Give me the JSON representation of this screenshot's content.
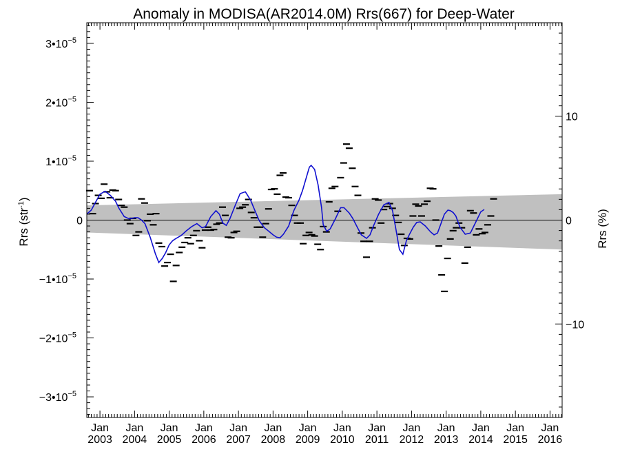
{
  "chart_data": {
    "type": "line",
    "title": "Anomaly in MODISA(AR2014.0M) Rrs(667) for Deep-Water",
    "ylabel": "Rrs (str",
    "ylabel_sup": "-1",
    "ylabel_close": ")",
    "y2label": "Rrs (%)",
    "ylim": [
      -3.35e-05,
      3.35e-05
    ],
    "y2lim": [
      -19.0,
      19.0
    ],
    "xlim": [
      2002.62,
      2016.35
    ],
    "grid": false,
    "legend": "none",
    "x_ticks": [
      {
        "x": 2003.0,
        "month": "Jan",
        "year": "2003"
      },
      {
        "x": 2004.0,
        "month": "Jan",
        "year": "2004"
      },
      {
        "x": 2005.0,
        "month": "Jan",
        "year": "2005"
      },
      {
        "x": 2006.0,
        "month": "Jan",
        "year": "2006"
      },
      {
        "x": 2007.0,
        "month": "Jan",
        "year": "2007"
      },
      {
        "x": 2008.0,
        "month": "Jan",
        "year": "2008"
      },
      {
        "x": 2009.0,
        "month": "Jan",
        "year": "2009"
      },
      {
        "x": 2010.0,
        "month": "Jan",
        "year": "2010"
      },
      {
        "x": 2011.0,
        "month": "Jan",
        "year": "2011"
      },
      {
        "x": 2012.0,
        "month": "Jan",
        "year": "2012"
      },
      {
        "x": 2013.0,
        "month": "Jan",
        "year": "2013"
      },
      {
        "x": 2014.0,
        "month": "Jan",
        "year": "2014"
      },
      {
        "x": 2015.0,
        "month": "Jan",
        "year": "2015"
      },
      {
        "x": 2016.0,
        "month": "Jan",
        "year": "2016"
      }
    ],
    "y_ticks": [
      {
        "value": 3e-05,
        "mantissa": "3",
        "exp": "−5"
      },
      {
        "value": 2e-05,
        "mantissa": "2",
        "exp": "−5"
      },
      {
        "value": 1e-05,
        "mantissa": "1",
        "exp": "−5"
      },
      {
        "value": 0,
        "label": "0"
      },
      {
        "value": -1e-05,
        "mantissa": "−1",
        "exp": "−5"
      },
      {
        "value": -2e-05,
        "mantissa": "−2",
        "exp": "−5"
      },
      {
        "value": -3e-05,
        "mantissa": "−3",
        "exp": "−5"
      }
    ],
    "y2_ticks": [
      {
        "value": 10,
        "label": "10"
      },
      {
        "value": 0,
        "label": "0"
      },
      {
        "value": -10,
        "label": "−10"
      }
    ],
    "band": {
      "color": "#c0c0c0",
      "x": [
        2002.62,
        2016.35
      ],
      "upper": [
        2.5e-06,
        4.4e-06
      ],
      "lower": [
        -2.1e-06,
        -5e-06
      ]
    },
    "series": [
      {
        "kind": "dash",
        "color": "#000000",
        "points": [
          [
            2002.7,
            5e-06
          ],
          [
            2002.79,
            1.1e-06
          ],
          [
            2002.87,
            2.8e-06
          ],
          [
            2002.95,
            4.2e-06
          ],
          [
            2003.04,
            3.7e-06
          ],
          [
            2003.12,
            6.1e-06
          ],
          [
            2003.2,
            4.8e-06
          ],
          [
            2003.29,
            3.8e-06
          ],
          [
            2003.37,
            5.1e-06
          ],
          [
            2003.45,
            5e-06
          ],
          [
            2003.54,
            3.5e-06
          ],
          [
            2003.62,
            2.5e-06
          ],
          [
            2003.7,
            2.2e-06
          ],
          [
            2003.79,
            0.0
          ],
          [
            2003.87,
            -6e-07
          ],
          [
            2003.95,
            3e-07
          ],
          [
            2004.04,
            -2.6e-06
          ],
          [
            2004.12,
            -2e-06
          ],
          [
            2004.2,
            3.6e-06
          ],
          [
            2004.29,
            2.9e-06
          ],
          [
            2004.37,
            -1e-07
          ],
          [
            2004.45,
            1e-06
          ],
          [
            2004.54,
            -8e-07
          ],
          [
            2004.62,
            1.1e-06
          ],
          [
            2004.7,
            -3.9e-06
          ],
          [
            2004.79,
            -4.5e-06
          ],
          [
            2004.87,
            -7.8e-06
          ],
          [
            2004.95,
            -7.2e-06
          ],
          [
            2005.04,
            -5.8e-06
          ],
          [
            2005.12,
            -1.04e-05
          ],
          [
            2005.2,
            -7.7e-06
          ],
          [
            2005.29,
            -5.5e-06
          ],
          [
            2005.37,
            -4.6e-06
          ],
          [
            2005.45,
            -3.8e-06
          ],
          [
            2005.54,
            -3e-06
          ],
          [
            2005.62,
            -4e-06
          ],
          [
            2005.7,
            -2.6e-06
          ],
          [
            2005.79,
            -1.8e-06
          ],
          [
            2005.87,
            -3.5e-06
          ],
          [
            2005.95,
            -4.7e-06
          ],
          [
            2006.04,
            -1.7e-06
          ],
          [
            2006.12,
            -1.2e-06
          ],
          [
            2006.2,
            -1.7e-06
          ],
          [
            2006.29,
            -1.6e-06
          ],
          [
            2006.37,
            -7e-07
          ],
          [
            2006.45,
            -5e-07
          ],
          [
            2006.54,
            2.2e-06
          ],
          [
            2006.62,
            8e-07
          ],
          [
            2006.7,
            -2.9e-06
          ],
          [
            2006.79,
            -3e-06
          ],
          [
            2006.87,
            -2.1e-06
          ],
          [
            2006.95,
            -1.9e-06
          ],
          [
            2007.04,
            2e-06
          ],
          [
            2007.12,
            2.2e-06
          ],
          [
            2007.2,
            2.6e-06
          ],
          [
            2007.29,
            3.5e-06
          ],
          [
            2007.37,
            1.3e-06
          ],
          [
            2007.45,
            4e-07
          ],
          [
            2007.54,
            -1.2e-06
          ],
          [
            2007.62,
            -1.2e-06
          ],
          [
            2007.7,
            -2.9e-06
          ],
          [
            2007.79,
            -6e-07
          ],
          [
            2007.87,
            1.9e-06
          ],
          [
            2007.95,
            5.2e-06
          ],
          [
            2008.04,
            5.3e-06
          ],
          [
            2008.12,
            4.4e-06
          ],
          [
            2008.2,
            7.6e-06
          ],
          [
            2008.29,
            8e-06
          ],
          [
            2008.37,
            3.9e-06
          ],
          [
            2008.45,
            3.8e-06
          ],
          [
            2008.54,
            2.5e-06
          ],
          [
            2008.62,
            8e-07
          ],
          [
            2008.7,
            -5e-07
          ],
          [
            2008.79,
            -5e-07
          ],
          [
            2008.87,
            -4e-06
          ],
          [
            2008.95,
            -2.6e-06
          ],
          [
            2009.04,
            -2.1e-06
          ],
          [
            2009.12,
            -2.5e-06
          ],
          [
            2009.2,
            -2.7e-06
          ],
          [
            2009.29,
            -4.1e-06
          ],
          [
            2009.37,
            -5e-06
          ],
          [
            2009.45,
            -1.1e-06
          ],
          [
            2009.54,
            -2e-06
          ],
          [
            2009.62,
            3.1e-06
          ],
          [
            2009.7,
            5.4e-06
          ],
          [
            2009.79,
            5.7e-06
          ],
          [
            2009.87,
            1.5e-06
          ],
          [
            2009.95,
            7.2e-06
          ],
          [
            2010.04,
            9.7e-06
          ],
          [
            2010.12,
            1.29e-05
          ],
          [
            2010.2,
            1.22e-05
          ],
          [
            2010.29,
            8.8e-06
          ],
          [
            2010.37,
            5.7e-06
          ],
          [
            2010.45,
            4.2e-06
          ],
          [
            2010.54,
            -2.2e-06
          ],
          [
            2010.62,
            -3.6e-06
          ],
          [
            2010.7,
            -6.3e-06
          ],
          [
            2010.79,
            -3.6e-06
          ],
          [
            2010.87,
            -1.3e-06
          ],
          [
            2010.95,
            3.6e-06
          ],
          [
            2011.04,
            3.4e-06
          ],
          [
            2011.12,
            -5e-07
          ],
          [
            2011.2,
            1.8e-06
          ],
          [
            2011.29,
            2.3e-06
          ],
          [
            2011.37,
            2.8e-06
          ],
          [
            2011.45,
            2e-06
          ],
          [
            2011.54,
            8e-07
          ],
          [
            2011.62,
            -4e-07
          ],
          [
            2011.7,
            -2.4e-06
          ],
          [
            2011.79,
            -4.3e-06
          ],
          [
            2011.87,
            -3.1e-06
          ],
          [
            2011.95,
            -3.2e-06
          ],
          [
            2012.04,
            7e-07
          ],
          [
            2012.12,
            2.7e-06
          ],
          [
            2012.2,
            2.4e-06
          ],
          [
            2012.29,
            7e-07
          ],
          [
            2012.37,
            2.7e-06
          ],
          [
            2012.45,
            3.2e-06
          ],
          [
            2012.54,
            5.4e-06
          ],
          [
            2012.62,
            5.3e-06
          ],
          [
            2012.7,
            0.0
          ],
          [
            2012.79,
            -4.4e-06
          ],
          [
            2012.87,
            -9.3e-06
          ],
          [
            2012.95,
            -1.21e-05
          ],
          [
            2013.04,
            -6.5e-06
          ],
          [
            2013.12,
            -3.2e-06
          ],
          [
            2013.2,
            -1.8e-06
          ],
          [
            2013.29,
            -1.3e-06
          ],
          [
            2013.37,
            -5e-07
          ],
          [
            2013.45,
            -1.3e-06
          ],
          [
            2013.54,
            -7.3e-06
          ],
          [
            2013.62,
            -4.6e-06
          ],
          [
            2013.7,
            1.6e-06
          ],
          [
            2013.79,
            1.2e-06
          ],
          [
            2013.87,
            -2.5e-06
          ],
          [
            2013.95,
            -1.5e-06
          ],
          [
            2014.04,
            -2.3e-06
          ],
          [
            2014.12,
            -2.1e-06
          ],
          [
            2014.2,
            -8e-07
          ],
          [
            2014.29,
            7e-07
          ],
          [
            2014.37,
            3.6e-06
          ]
        ]
      },
      {
        "kind": "smooth",
        "color": "#1010d0",
        "points": [
          [
            2002.62,
            1e-06
          ],
          [
            2002.75,
            1.7e-06
          ],
          [
            2002.87,
            3e-06
          ],
          [
            2003.0,
            4.4e-06
          ],
          [
            2003.15,
            4.9e-06
          ],
          [
            2003.3,
            4.2e-06
          ],
          [
            2003.45,
            3.2e-06
          ],
          [
            2003.55,
            2e-06
          ],
          [
            2003.7,
            6e-07
          ],
          [
            2003.85,
            2e-07
          ],
          [
            2004.0,
            4e-07
          ],
          [
            2004.1,
            4e-07
          ],
          [
            2004.2,
            0.0
          ],
          [
            2004.3,
            -6e-07
          ],
          [
            2004.45,
            -2.9e-06
          ],
          [
            2004.6,
            -5.7e-06
          ],
          [
            2004.7,
            -7.2e-06
          ],
          [
            2004.8,
            -6.5e-06
          ],
          [
            2004.9,
            -5.5e-06
          ],
          [
            2005.0,
            -4.2e-06
          ],
          [
            2005.1,
            -3.5e-06
          ],
          [
            2005.2,
            -3.1e-06
          ],
          [
            2005.35,
            -2.6e-06
          ],
          [
            2005.5,
            -1.8e-06
          ],
          [
            2005.65,
            -1.1e-06
          ],
          [
            2005.8,
            -6e-07
          ],
          [
            2005.95,
            -1.3e-06
          ],
          [
            2006.05,
            -1.1e-06
          ],
          [
            2006.2,
            6e-07
          ],
          [
            2006.35,
            1.6e-06
          ],
          [
            2006.45,
            1e-06
          ],
          [
            2006.55,
            -5e-07
          ],
          [
            2006.65,
            -9e-07
          ],
          [
            2006.75,
            2e-07
          ],
          [
            2006.9,
            2.4e-06
          ],
          [
            2007.05,
            4.5e-06
          ],
          [
            2007.2,
            4.8e-06
          ],
          [
            2007.35,
            3.4e-06
          ],
          [
            2007.5,
            1.3e-06
          ],
          [
            2007.6,
            -1e-07
          ],
          [
            2007.75,
            -1.3e-06
          ],
          [
            2007.9,
            -2e-06
          ],
          [
            2008.0,
            -2.5e-06
          ],
          [
            2008.1,
            -2.9e-06
          ],
          [
            2008.2,
            -3e-06
          ],
          [
            2008.3,
            -2.4e-06
          ],
          [
            2008.45,
            -1e-06
          ],
          [
            2008.6,
            1.6e-06
          ],
          [
            2008.75,
            3.4e-06
          ],
          [
            2008.85,
            5e-06
          ],
          [
            2008.95,
            7e-06
          ],
          [
            2009.05,
            9e-06
          ],
          [
            2009.1,
            9.3e-06
          ],
          [
            2009.2,
            8.6e-06
          ],
          [
            2009.3,
            6e-06
          ],
          [
            2009.4,
            2.2e-06
          ],
          [
            2009.45,
            -8e-07
          ],
          [
            2009.55,
            -1.9e-06
          ],
          [
            2009.65,
            -1.5e-06
          ],
          [
            2009.8,
            2e-07
          ],
          [
            2009.95,
            2.1e-06
          ],
          [
            2010.05,
            2.1e-06
          ],
          [
            2010.2,
            1.2e-06
          ],
          [
            2010.3,
            3e-07
          ],
          [
            2010.45,
            -1.4e-06
          ],
          [
            2010.55,
            -2.5e-06
          ],
          [
            2010.7,
            -3.1e-06
          ],
          [
            2010.8,
            -2.5e-06
          ],
          [
            2010.9,
            -1e-06
          ],
          [
            2011.05,
            1e-06
          ],
          [
            2011.2,
            2.6e-06
          ],
          [
            2011.35,
            3e-06
          ],
          [
            2011.45,
            1.6e-06
          ],
          [
            2011.55,
            -1.6e-06
          ],
          [
            2011.65,
            -5e-06
          ],
          [
            2011.75,
            -5.8e-06
          ],
          [
            2011.85,
            -3.5e-06
          ],
          [
            2011.95,
            -2.3e-06
          ],
          [
            2012.05,
            -1.2e-06
          ],
          [
            2012.15,
            -4e-07
          ],
          [
            2012.25,
            -3e-07
          ],
          [
            2012.4,
            -1e-06
          ],
          [
            2012.55,
            -2e-06
          ],
          [
            2012.65,
            -2.5e-06
          ],
          [
            2012.75,
            -2.2e-06
          ],
          [
            2012.85,
            -6e-07
          ],
          [
            2012.95,
            1e-06
          ],
          [
            2013.05,
            1.7e-06
          ],
          [
            2013.12,
            1.6e-06
          ],
          [
            2013.2,
            1.3e-06
          ],
          [
            2013.28,
            7e-07
          ],
          [
            2013.4,
            -1.2e-06
          ],
          [
            2013.55,
            -2.4e-06
          ],
          [
            2013.7,
            -2.2e-06
          ],
          [
            2013.85,
            -4e-07
          ],
          [
            2014.0,
            1.4e-06
          ],
          [
            2014.1,
            1.8e-06
          ]
        ]
      }
    ]
  }
}
